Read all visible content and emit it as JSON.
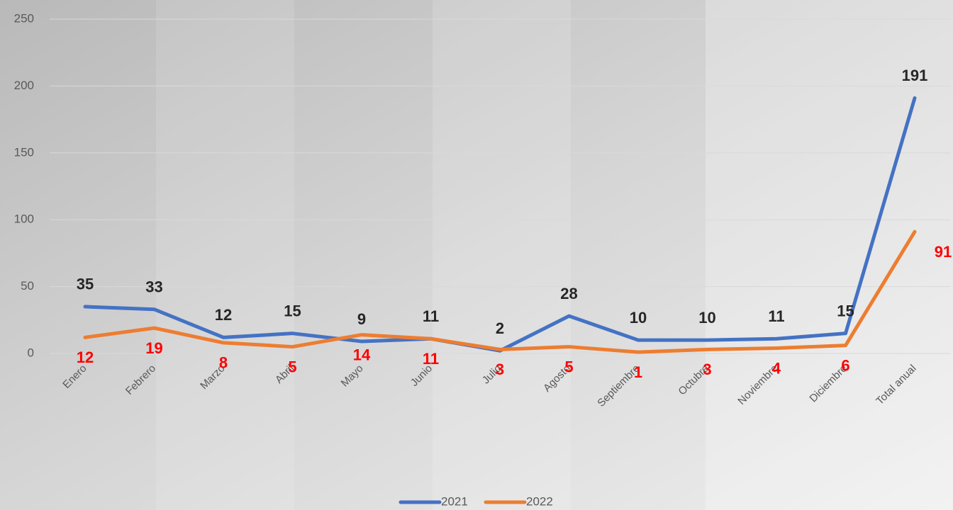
{
  "chart_data": {
    "type": "line",
    "categories": [
      "Enero",
      "Febrero",
      "Marzo",
      "Abril",
      "Mayo",
      "Junio",
      "Julio",
      "Agosto",
      "Septiembre",
      "Octubre",
      "Noviembre",
      "Diciembre",
      "Total anual"
    ],
    "series": [
      {
        "name": "2021",
        "color": "#4472c4",
        "label_color": "#262626",
        "values": [
          35,
          33,
          12,
          15,
          9,
          11,
          2,
          28,
          10,
          10,
          11,
          15,
          191
        ]
      },
      {
        "name": "2022",
        "color": "#ed7d31",
        "label_color": "#ff0000",
        "values": [
          12,
          19,
          8,
          5,
          14,
          11,
          3,
          5,
          1,
          3,
          4,
          6,
          91
        ]
      }
    ],
    "ylim": [
      0,
      250
    ],
    "yticks": [
      0,
      50,
      100,
      150,
      200,
      250
    ],
    "grid": true,
    "legend": "bottom"
  }
}
